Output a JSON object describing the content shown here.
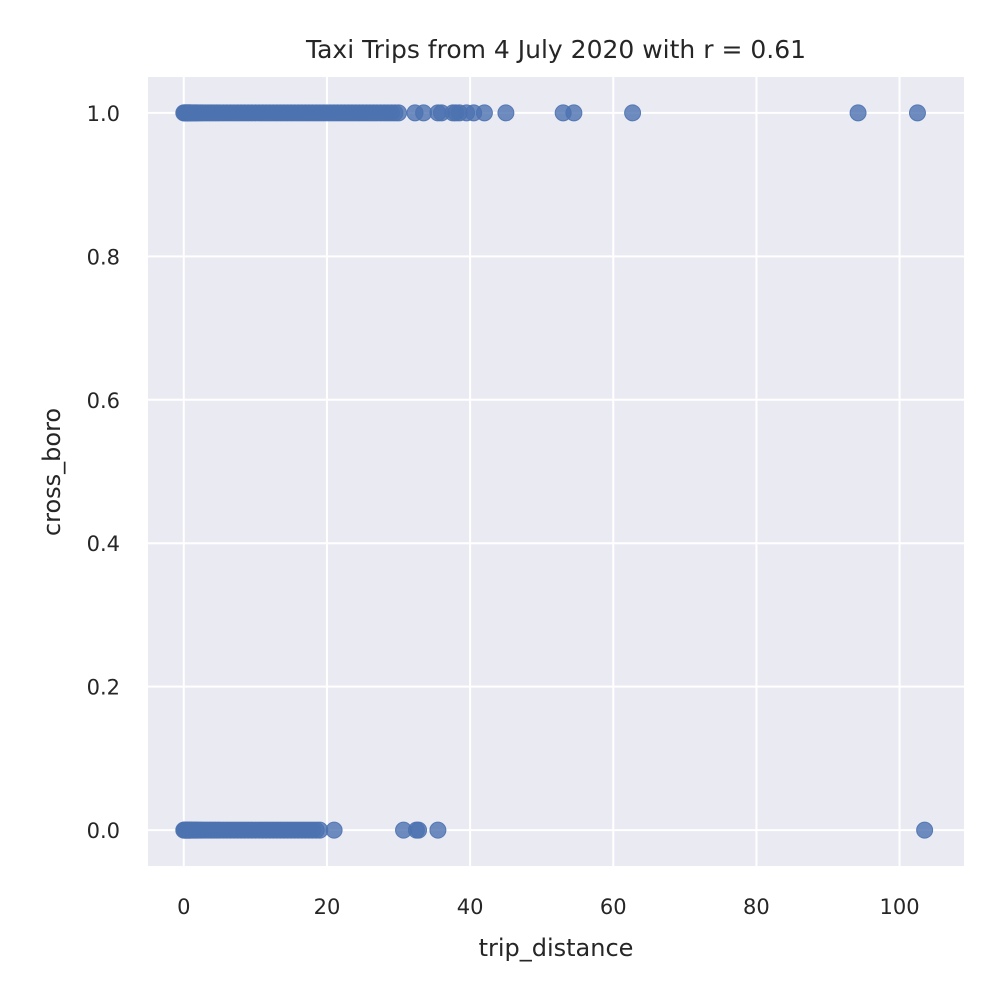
{
  "chart_data": {
    "type": "scatter",
    "title": "Taxi Trips from 4 July 2020 with r = 0.61",
    "xlabel": "trip_distance",
    "ylabel": "cross_boro",
    "xlim": [
      -5,
      109
    ],
    "ylim": [
      -0.05,
      1.05
    ],
    "xticks": [
      0,
      20,
      40,
      60,
      80,
      100
    ],
    "xtick_labels": [
      "0",
      "20",
      "40",
      "60",
      "80",
      "100"
    ],
    "yticks": [
      0.0,
      0.2,
      0.4,
      0.6,
      0.8,
      1.0
    ],
    "ytick_labels": [
      "0.0",
      "0.2",
      "0.4",
      "0.6",
      "0.8",
      "1.0"
    ],
    "grid": true,
    "legend": "none",
    "background_color": "#eaeaf2",
    "point_color": "#4c72b0",
    "series": [
      {
        "y": 1.0,
        "x": [
          0,
          0.1,
          0.2,
          0.3,
          0.4,
          0.5,
          0.6,
          0.7,
          0.8,
          0.9,
          1.0,
          1.2,
          1.4,
          1.6,
          1.8,
          2.0,
          2.3,
          2.6,
          3.0,
          3.4,
          3.8,
          4.2,
          4.6,
          5.0,
          5.5,
          6.0,
          6.5,
          7.0,
          7.5,
          8.0,
          8.5,
          9.0,
          9.5,
          10.0,
          10.5,
          11.0,
          11.5,
          12.0,
          12.5,
          13.0,
          13.5,
          14.0,
          14.5,
          15.0,
          15.5,
          16.0,
          16.5,
          17.0,
          17.5,
          18.0,
          18.5,
          19.0,
          19.5,
          20.0,
          20.5,
          21.0,
          21.5,
          22.0,
          22.5,
          23.0,
          23.5,
          24.0,
          24.5,
          25.0,
          25.5,
          26.0,
          26.5,
          27.0,
          27.5,
          28.0,
          28.5,
          29.0,
          29.5,
          30.0,
          32.3,
          33.5,
          35.5,
          36.0,
          37.6,
          38.0,
          38.5,
          39.5,
          40.5,
          42.0,
          45.0,
          53.0,
          54.5,
          62.7,
          94.2,
          102.5
        ]
      },
      {
        "y": 0.0,
        "x": [
          0,
          0.1,
          0.2,
          0.3,
          0.4,
          0.5,
          0.6,
          0.7,
          0.8,
          0.9,
          1.0,
          1.2,
          1.4,
          1.6,
          1.8,
          2.0,
          2.3,
          2.6,
          3.0,
          3.4,
          3.8,
          4.2,
          4.6,
          5.0,
          5.5,
          6.0,
          6.5,
          7.0,
          7.5,
          8.0,
          8.5,
          9.0,
          9.5,
          10.0,
          10.5,
          11.0,
          11.5,
          12.0,
          12.5,
          13.0,
          13.5,
          14.0,
          14.5,
          15.0,
          15.5,
          16.0,
          16.5,
          17.0,
          17.5,
          18.0,
          18.5,
          19.0,
          21.0,
          30.7,
          32.5,
          32.8,
          35.5,
          103.5
        ]
      }
    ]
  }
}
